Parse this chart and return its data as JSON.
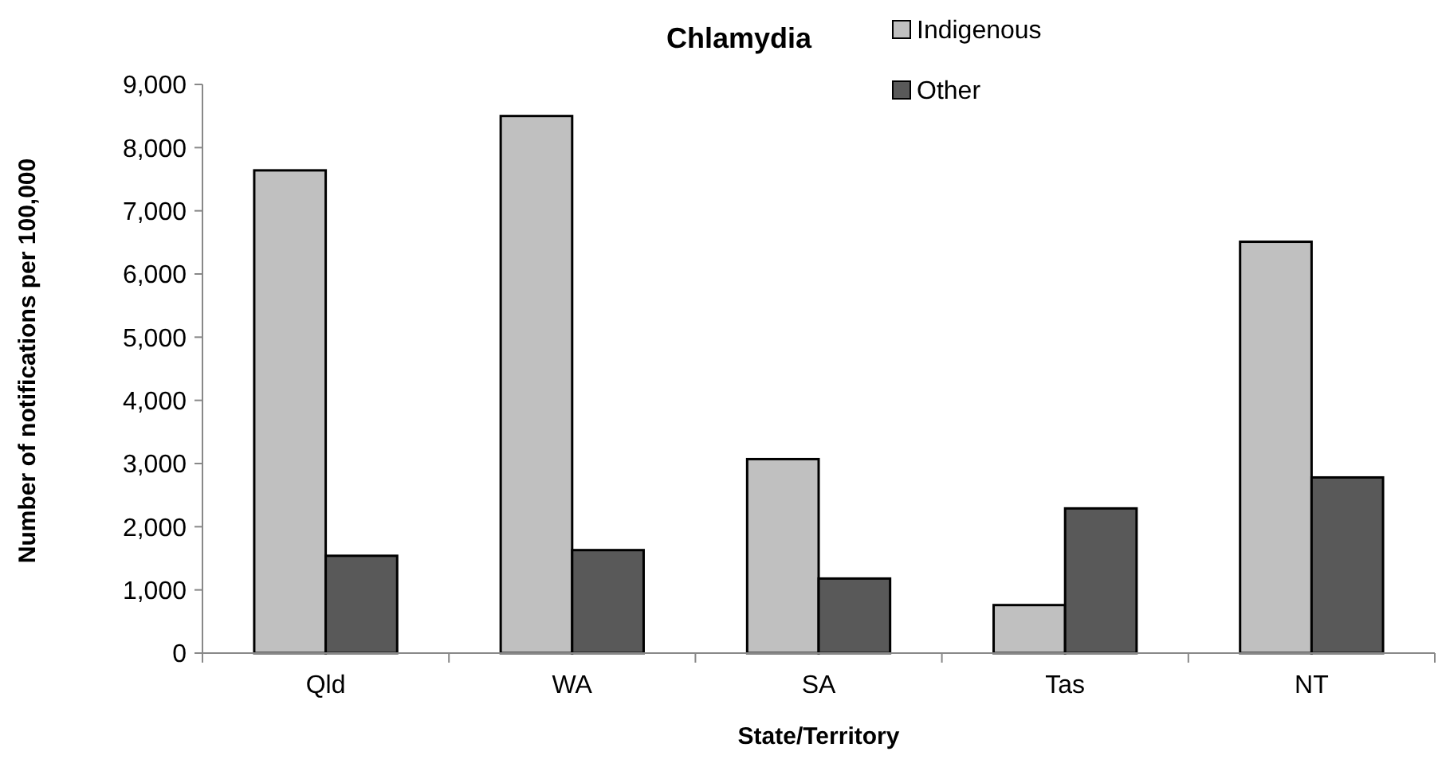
{
  "chart_data": {
    "type": "bar",
    "title": "Chlamydia",
    "xlabel": "State/Territory",
    "ylabel": "Number of notifications per 100,000",
    "categories": [
      "Qld",
      "WA",
      "SA",
      "Tas",
      "NT"
    ],
    "series": [
      {
        "name": "Indigenous",
        "color": "#c0c0c0",
        "values": [
          7640,
          8500,
          3070,
          760,
          6510
        ]
      },
      {
        "name": "Other",
        "color": "#595959",
        "values": [
          1540,
          1630,
          1180,
          2290,
          2780
        ]
      }
    ],
    "ylim": [
      0,
      9000
    ],
    "yticks": [
      {
        "value": 0,
        "label": "0"
      },
      {
        "value": 1000,
        "label": "1,000"
      },
      {
        "value": 2000,
        "label": "2,000"
      },
      {
        "value": 3000,
        "label": "3,000"
      },
      {
        "value": 4000,
        "label": "4,000"
      },
      {
        "value": 5000,
        "label": "5,000"
      },
      {
        "value": 6000,
        "label": "6,000"
      },
      {
        "value": 7000,
        "label": "7,000"
      },
      {
        "value": 8000,
        "label": "8,000"
      },
      {
        "value": 9000,
        "label": "9,000"
      }
    ],
    "legend": "top right"
  }
}
